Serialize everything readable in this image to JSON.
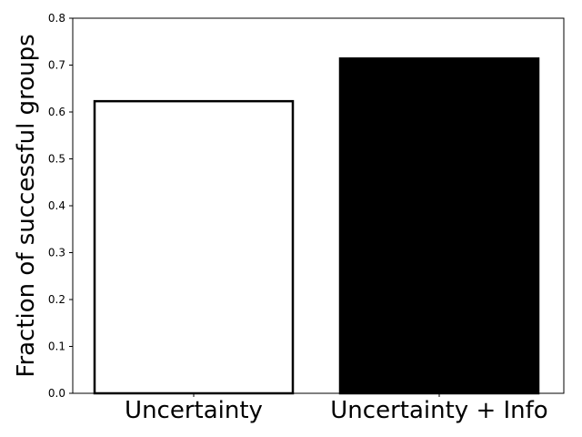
{
  "chart_data": {
    "type": "bar",
    "categories": [
      "Uncertainty",
      "Uncertainty + Info"
    ],
    "values": [
      0.623,
      0.714
    ],
    "bar_styles": [
      {
        "fill": "#ffffff",
        "stroke": "#000000"
      },
      {
        "fill": "#000000",
        "stroke": "#000000"
      }
    ],
    "ylabel": "Fraction of successful groups",
    "xlabel": "",
    "ylim": [
      0,
      0.8
    ],
    "yticks": [
      "0.0",
      "0.1",
      "0.2",
      "0.3",
      "0.4",
      "0.5",
      "0.6",
      "0.7",
      "0.8"
    ],
    "grid": false
  }
}
